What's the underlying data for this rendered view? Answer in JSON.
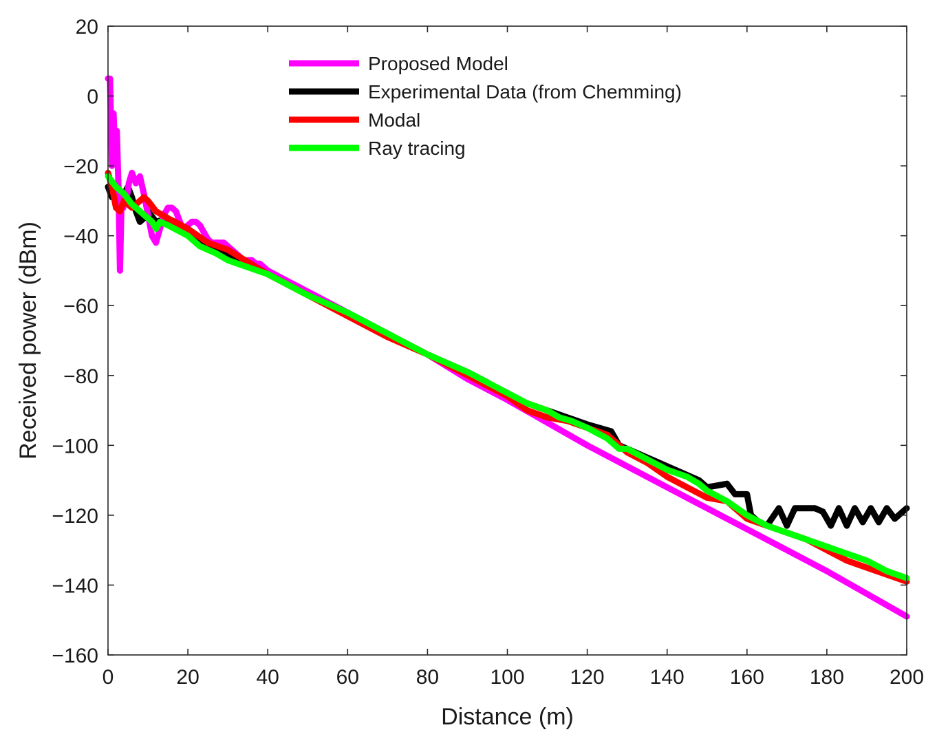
{
  "chart_data": {
    "type": "line",
    "title": "",
    "xlabel": "Distance (m)",
    "ylabel": "Received power (dBm)",
    "xlim": [
      0,
      200
    ],
    "ylim": [
      -160,
      20
    ],
    "xticks": [
      0,
      20,
      40,
      60,
      80,
      100,
      120,
      140,
      160,
      180,
      200
    ],
    "yticks": [
      20,
      0,
      -20,
      -40,
      -60,
      -80,
      -100,
      -120,
      -140,
      -160
    ],
    "xtick_labels": [
      "0",
      "20",
      "40",
      "60",
      "80",
      "100",
      "120",
      "140",
      "160",
      "180",
      "200"
    ],
    "ytick_labels": [
      "20",
      "0",
      "−20",
      "−40",
      "−60",
      "−80",
      "−100",
      "−120",
      "−140",
      "−160"
    ],
    "grid": false,
    "legend_position": "top-left",
    "series": [
      {
        "name": "Proposed Model",
        "color": "#ff00ff",
        "x": [
          0,
          0.5,
          1,
          1.4,
          1.8,
          2.2,
          2.6,
          3.0,
          3.4,
          3.8,
          4.2,
          4.6,
          5.2,
          6,
          7,
          8,
          9,
          10,
          11,
          12,
          13,
          14,
          15,
          16,
          17,
          18,
          19,
          20,
          21,
          22,
          23,
          24,
          25,
          26,
          27,
          28,
          29,
          30,
          31,
          32,
          33,
          34,
          35,
          36,
          37,
          38,
          39,
          40,
          45,
          50,
          55,
          60,
          70,
          80,
          90,
          100,
          120,
          140,
          160,
          180,
          200
        ],
        "y": [
          5,
          5,
          -20,
          -5,
          -18,
          -10,
          -25,
          -50,
          -30,
          -32,
          -28,
          -30,
          -25,
          -22,
          -25,
          -23,
          -28,
          -34,
          -40,
          -42,
          -38,
          -34,
          -32,
          -32,
          -33,
          -36,
          -39,
          -37,
          -36,
          -36,
          -37,
          -39,
          -41,
          -42,
          -42,
          -42,
          -42,
          -43,
          -44,
          -45,
          -46,
          -47,
          -47,
          -47,
          -48,
          -48,
          -49,
          -50,
          -53,
          -56,
          -59,
          -62,
          -68,
          -74,
          -81,
          -87,
          -100,
          -112,
          -124,
          -136,
          -149
        ]
      },
      {
        "name": "Experimental Data (from Chemming)",
        "color": "#000000",
        "x": [
          0,
          1,
          2,
          3,
          4,
          5,
          6,
          7,
          8,
          9,
          10,
          12,
          15,
          20,
          25,
          30,
          40,
          50,
          60,
          70,
          80,
          90,
          95,
          100,
          105,
          110,
          115,
          120,
          126,
          128,
          130,
          140,
          148,
          150,
          155,
          157,
          160,
          161,
          163,
          165,
          168,
          170,
          172,
          175,
          177,
          179,
          181,
          183,
          185,
          187,
          189,
          191,
          193,
          195,
          197,
          199,
          200
        ],
        "y": [
          -26,
          -29,
          -27,
          -30,
          -28,
          -26,
          -29,
          -33,
          -36,
          -35,
          -33,
          -36,
          -35,
          -39,
          -43,
          -45,
          -51,
          -57,
          -62,
          -68,
          -74,
          -79,
          -82,
          -86,
          -88,
          -90,
          -92,
          -94,
          -96,
          -100,
          -101,
          -106,
          -110,
          -112,
          -111,
          -114,
          -114,
          -120,
          -122,
          -123,
          -118,
          -123,
          -118,
          -118,
          -118,
          -119,
          -123,
          -118,
          -123,
          -118,
          -122,
          -118,
          -122,
          -118,
          -121,
          -119,
          -118
        ]
      },
      {
        "name": "Modal",
        "color": "#ff0000",
        "x": [
          0,
          1,
          2,
          3,
          4,
          5,
          6,
          7,
          8,
          9,
          10,
          12,
          15,
          20,
          25,
          30,
          40,
          50,
          60,
          70,
          80,
          90,
          100,
          105,
          110,
          115,
          120,
          125,
          130,
          135,
          140,
          145,
          150,
          155,
          160,
          165,
          170,
          175,
          180,
          185,
          190,
          195,
          200
        ],
        "y": [
          -22,
          -26,
          -32,
          -33,
          -30,
          -31,
          -32,
          -31,
          -30,
          -29,
          -30,
          -33,
          -35,
          -38,
          -42,
          -44,
          -51,
          -57,
          -63,
          -69,
          -74,
          -80,
          -86,
          -90,
          -92,
          -93,
          -95,
          -97,
          -102,
          -105,
          -109,
          -112,
          -115,
          -116,
          -121,
          -123,
          -125,
          -127,
          -130,
          -133,
          -135,
          -137,
          -139
        ]
      },
      {
        "name": "Ray tracing",
        "color": "#00ff00",
        "x": [
          0,
          2,
          4,
          6,
          8,
          10,
          11,
          12,
          13,
          15,
          20,
          23,
          27,
          30,
          40,
          50,
          60,
          70,
          80,
          90,
          100,
          105,
          110,
          113,
          116,
          120,
          125,
          128,
          130,
          135,
          140,
          145,
          148,
          150,
          155,
          160,
          165,
          170,
          175,
          180,
          185,
          190,
          195,
          200
        ],
        "y": [
          -23,
          -26,
          -28,
          -31,
          -33,
          -35,
          -36,
          -38,
          -36,
          -37,
          -40,
          -43,
          -45,
          -47,
          -51,
          -57,
          -62,
          -68,
          -74,
          -79,
          -85,
          -88,
          -90,
          -92,
          -93,
          -95,
          -98,
          -101,
          -101,
          -104,
          -107,
          -109,
          -111,
          -113,
          -116,
          -120,
          -123,
          -125,
          -127,
          -129,
          -131,
          -133,
          -136,
          -138
        ]
      }
    ]
  }
}
